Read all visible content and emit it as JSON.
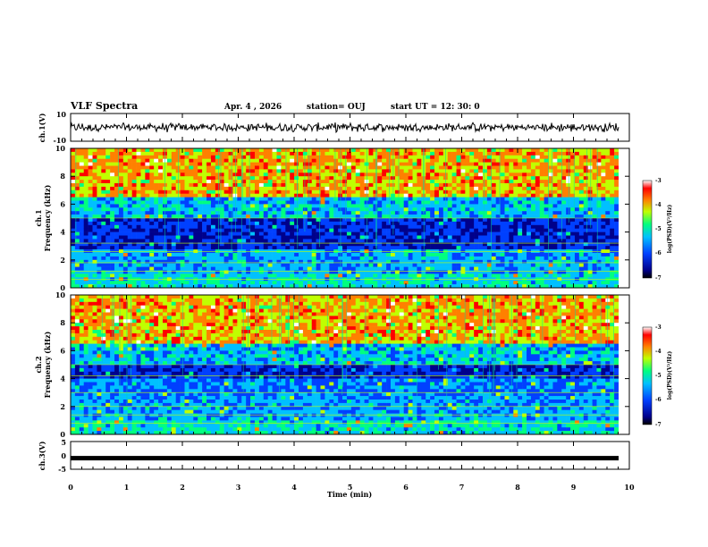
{
  "header": {
    "title": "VLF Spectra",
    "date": "Apr. 4 , 2026",
    "station": "station= OUJ",
    "start": "start UT = 12: 30: 0"
  },
  "chart_data": [
    {
      "type": "line",
      "name": "ch1-waveform",
      "ylabel": "ch.1(V)",
      "ylim": [
        -10,
        10
      ],
      "yticks": [
        "10",
        "-10"
      ],
      "xlim": [
        0,
        10
      ],
      "description_values": {
        "noise_amplitude_v": 2.5,
        "offset_v": 0.0
      }
    },
    {
      "type": "heatmap",
      "name": "ch1-spectrogram",
      "ylabel": [
        "ch.1",
        "Frequency (kHz)"
      ],
      "ylim": [
        0,
        10
      ],
      "yticks": [
        "0",
        "2",
        "4",
        "6",
        "8",
        "10"
      ],
      "xlim": [
        0,
        10
      ],
      "colorbar": {
        "label": "log(PSD)(V²/Hz)",
        "range": [
          -7,
          -3
        ],
        "ticks": [
          "-3",
          "-4",
          "-5",
          "-6",
          "-7"
        ]
      }
    },
    {
      "type": "heatmap",
      "name": "ch2-spectrogram",
      "ylabel": [
        "ch.2",
        "Frequency (kHz)"
      ],
      "ylim": [
        0,
        10
      ],
      "yticks": [
        "0",
        "2",
        "4",
        "6",
        "8",
        "10"
      ],
      "xlim": [
        0,
        10
      ],
      "colorbar": {
        "label": "log(PSD)(V²/Hz)",
        "range": [
          -7,
          -3
        ],
        "ticks": [
          "-3",
          "-4",
          "-5",
          "-6",
          "-7"
        ]
      }
    },
    {
      "type": "line",
      "name": "ch3-waveform",
      "ylabel": "ch.3(V)",
      "ylim": [
        -5,
        5
      ],
      "yticks": [
        "5",
        "0",
        "-5"
      ],
      "xlim": [
        0,
        10
      ],
      "description_values": {
        "level_v": -1.0
      }
    }
  ],
  "xaxis": {
    "label": "Time (min)",
    "ticks": [
      "0",
      "1",
      "2",
      "3",
      "4",
      "5",
      "6",
      "7",
      "8",
      "9",
      "10"
    ]
  },
  "colors": {
    "psd_scale": [
      "#000000",
      "#00008b",
      "#0040ff",
      "#00c0ff",
      "#00ff80",
      "#c0ff00",
      "#ff8000",
      "#ff0000",
      "#ffffff"
    ]
  }
}
